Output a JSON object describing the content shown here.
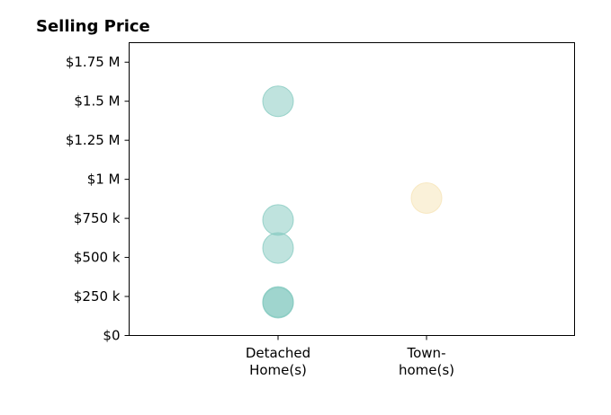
{
  "chart_data": {
    "type": "scatter",
    "title": "Selling Price",
    "xlabel": "",
    "ylabel": "",
    "categories": [
      [
        "Detached",
        "Home(s)"
      ],
      [
        "Town-",
        "home(s)"
      ]
    ],
    "ylim": [
      0,
      1875000
    ],
    "yticks": [
      {
        "value": 0,
        "label": "$0"
      },
      {
        "value": 250000,
        "label": "$250 k"
      },
      {
        "value": 500000,
        "label": "$500 k"
      },
      {
        "value": 750000,
        "label": "$750 k"
      },
      {
        "value": 1000000,
        "label": "$1 M"
      },
      {
        "value": 1250000,
        "label": "$1.25 M"
      },
      {
        "value": 1500000,
        "label": "$1.5 M"
      },
      {
        "value": 1750000,
        "label": "$1.75 M"
      }
    ],
    "grid": false,
    "series": [
      {
        "category_index": 0,
        "color": "#80c8be",
        "values": [
          1500000,
          740000,
          560000,
          215000,
          210000
        ]
      },
      {
        "category_index": 1,
        "color": "#f6e3b4",
        "values": [
          880000
        ]
      }
    ]
  }
}
